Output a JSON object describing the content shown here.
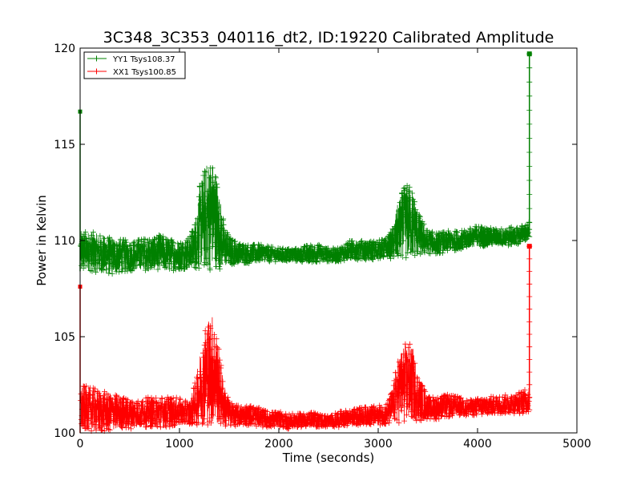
{
  "chart_data": {
    "type": "line",
    "title": "3C348_3C353_040116_dt2, ID:19220 Calibrated Amplitude",
    "xlabel": "Time (seconds)",
    "ylabel": "Power in Kelvin",
    "xlim": [
      0,
      5000
    ],
    "ylim": [
      100,
      120
    ],
    "xticks": [
      "0",
      "1000",
      "2000",
      "3000",
      "4000",
      "5000"
    ],
    "yticks": [
      "100",
      "105",
      "110",
      "115",
      "120"
    ],
    "grid": false,
    "legend_position": "top-left",
    "marker": "+",
    "series": [
      {
        "name": "YY1 Tsys108.37",
        "color": "#008000",
        "x": [
          0,
          1,
          2,
          5,
          100,
          200,
          300,
          400,
          500,
          600,
          700,
          800,
          900,
          1000,
          1100,
          1150,
          1200,
          1250,
          1300,
          1330,
          1360,
          1400,
          1450,
          1500,
          1600,
          1700,
          1800,
          1900,
          2000,
          2100,
          2200,
          2300,
          2400,
          2500,
          2600,
          2700,
          2800,
          2900,
          3000,
          3100,
          3150,
          3200,
          3250,
          3300,
          3350,
          3400,
          3500,
          3600,
          3700,
          3800,
          3900,
          4000,
          4100,
          4200,
          4300,
          4400,
          4500,
          4520,
          4522
        ],
        "y_low": [
          108.4,
          108.5,
          108.5,
          108.3,
          108.4,
          108.3,
          108.2,
          108.3,
          108.4,
          108.5,
          108.4,
          108.5,
          108.4,
          108.5,
          108.5,
          108.5,
          108.5,
          108.5,
          108.4,
          108.5,
          108.5,
          108.5,
          108.6,
          108.7,
          108.8,
          108.8,
          108.9,
          108.9,
          108.9,
          108.9,
          108.9,
          108.8,
          108.9,
          108.9,
          108.9,
          109.0,
          109.0,
          109.0,
          109.0,
          109.1,
          109.0,
          109.0,
          109.0,
          109.0,
          109.1,
          109.2,
          109.3,
          109.3,
          109.4,
          109.5,
          109.6,
          109.7,
          109.7,
          109.8,
          109.7,
          109.8,
          110.0,
          110.1,
          110.2
        ],
        "y_high": [
          116.7,
          110.6,
          110.6,
          110.5,
          110.5,
          110.3,
          110.2,
          110.1,
          110.0,
          110.1,
          110.2,
          110.3,
          110.1,
          110.0,
          110.2,
          111.0,
          112.8,
          113.8,
          114.3,
          114.2,
          113.8,
          112.5,
          110.8,
          110.2,
          109.9,
          109.8,
          109.8,
          109.7,
          109.6,
          109.6,
          109.6,
          109.8,
          109.8,
          109.6,
          109.6,
          110.0,
          110.0,
          110.0,
          110.0,
          110.2,
          110.8,
          112.0,
          112.7,
          113.0,
          112.6,
          111.5,
          110.5,
          110.4,
          110.5,
          110.5,
          110.6,
          110.8,
          110.7,
          110.6,
          110.7,
          110.7,
          110.9,
          111.0,
          119.7
        ]
      },
      {
        "name": "XX1 Tsys100.85",
        "color": "#ff0000",
        "x": [
          0,
          1,
          2,
          5,
          100,
          200,
          300,
          400,
          500,
          600,
          700,
          800,
          900,
          1000,
          1100,
          1150,
          1200,
          1250,
          1300,
          1330,
          1360,
          1400,
          1450,
          1500,
          1600,
          1700,
          1800,
          1900,
          2000,
          2100,
          2200,
          2300,
          2400,
          2500,
          2600,
          2700,
          2800,
          2900,
          3000,
          3100,
          3150,
          3200,
          3250,
          3300,
          3350,
          3400,
          3500,
          3600,
          3700,
          3800,
          3900,
          4000,
          4100,
          4200,
          4300,
          4400,
          4500,
          4520,
          4522
        ],
        "y_low": [
          100.0,
          100.2,
          100.2,
          100.1,
          100.1,
          100.0,
          100.1,
          100.2,
          100.2,
          100.3,
          100.3,
          100.2,
          100.3,
          100.4,
          100.4,
          100.4,
          100.4,
          100.4,
          100.4,
          100.4,
          100.4,
          100.4,
          100.3,
          100.3,
          100.4,
          100.4,
          100.3,
          100.3,
          100.3,
          100.2,
          100.3,
          100.3,
          100.3,
          100.3,
          100.3,
          100.4,
          100.4,
          100.4,
          100.4,
          100.4,
          100.5,
          100.5,
          100.5,
          100.6,
          100.6,
          100.6,
          100.7,
          100.7,
          100.8,
          100.9,
          100.9,
          100.9,
          100.9,
          101.0,
          101.0,
          101.0,
          101.0,
          101.1,
          101.2
        ],
        "y_high": [
          107.6,
          102.7,
          102.6,
          102.5,
          102.4,
          102.2,
          102.1,
          101.9,
          101.8,
          101.7,
          101.9,
          101.9,
          101.9,
          101.8,
          101.7,
          102.5,
          104.0,
          105.5,
          106.2,
          106.2,
          105.6,
          104.2,
          102.5,
          101.7,
          101.4,
          101.5,
          101.3,
          101.1,
          101.1,
          101.0,
          101.0,
          101.1,
          101.0,
          100.9,
          101.1,
          101.2,
          101.3,
          101.4,
          101.4,
          101.6,
          102.5,
          104.0,
          104.6,
          104.8,
          104.4,
          103.0,
          101.9,
          101.9,
          102.0,
          101.9,
          101.7,
          101.8,
          101.9,
          101.9,
          102.0,
          102.1,
          102.3,
          102.5,
          109.7
        ]
      }
    ]
  }
}
